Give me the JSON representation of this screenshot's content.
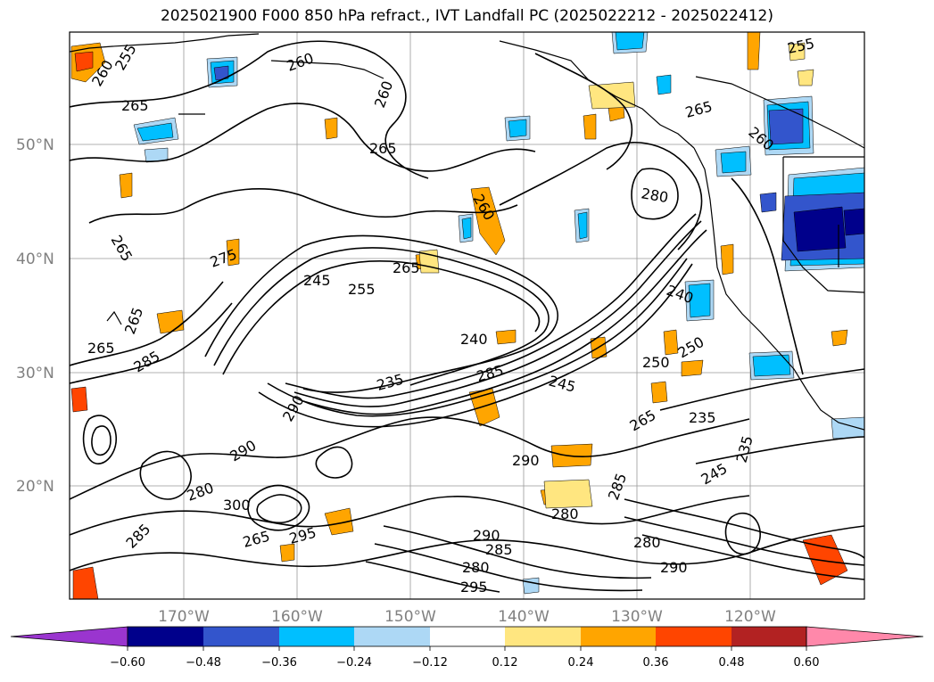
{
  "title": "2025021900 F000 850 hPa refract., IVT Landfall PC (2025022212 - 2025022412)",
  "lat_labels": [
    "50°N",
    "40°N",
    "30°N",
    "20°N"
  ],
  "lon_labels": [
    "170°W",
    "160°W",
    "150°W",
    "140°W",
    "130°W",
    "120°W"
  ],
  "colorbar": {
    "ticks": [
      "−0.60",
      "−0.48",
      "−0.36",
      "−0.24",
      "−0.12",
      "0.12",
      "0.24",
      "0.36",
      "0.48",
      "0.60"
    ],
    "under_color": "#9933cc",
    "over_color": "#ff88aa",
    "colors": [
      "#9a35cf",
      "#00008b",
      "#3355cc",
      "#00bfff",
      "#add8f5",
      "#ffffff",
      "#ffe680",
      "#ffa500",
      "#ff4500",
      "#b22222",
      "#ff88aa"
    ]
  },
  "contour_labels": [
    "255",
    "260",
    "265",
    "260",
    "265",
    "255",
    "260",
    "265",
    "280",
    "265",
    "260",
    "265",
    "275",
    "245",
    "255",
    "265",
    "240",
    "240",
    "250",
    "250",
    "265",
    "285",
    "260",
    "235",
    "285",
    "245",
    "265",
    "235",
    "290",
    "290",
    "300",
    "280",
    "280",
    "290",
    "285",
    "265",
    "295",
    "235",
    "245",
    "290",
    "280",
    "285",
    "290",
    "295",
    "285",
    "280"
  ]
}
